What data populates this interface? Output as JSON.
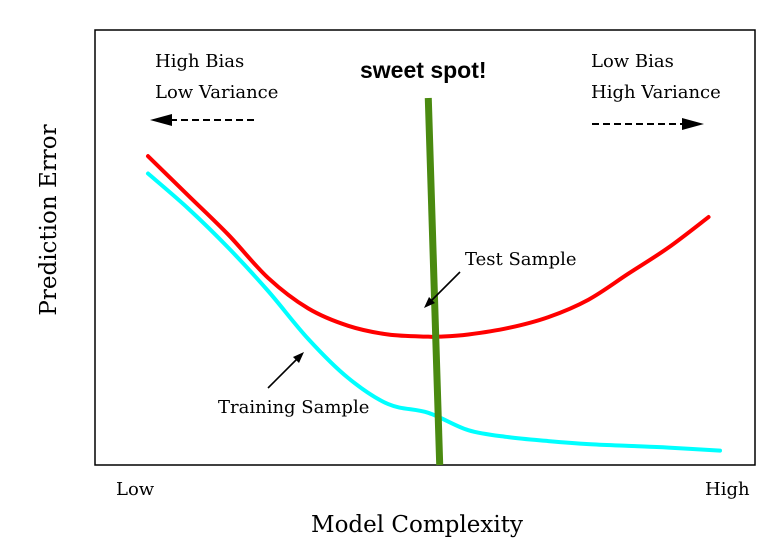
{
  "chart_data": {
    "type": "line",
    "xlabel": "Model Complexity",
    "ylabel": "Prediction Error",
    "x_tick_labels": [
      "Low",
      "High"
    ],
    "xlim": [
      0,
      1
    ],
    "ylim": [
      0,
      1
    ],
    "grid": false,
    "series": [
      {
        "name": "Test Sample",
        "color": "#ff0000",
        "x": [
          0.0,
          0.07,
          0.14,
          0.21,
          0.28,
          0.35,
          0.42,
          0.49,
          0.51,
          0.56,
          0.63,
          0.7,
          0.77,
          0.84,
          0.91,
          0.98
        ],
        "y": [
          0.71,
          0.62,
          0.53,
          0.43,
          0.36,
          0.32,
          0.3,
          0.295,
          0.295,
          0.3,
          0.315,
          0.34,
          0.38,
          0.44,
          0.5,
          0.57
        ]
      },
      {
        "name": "Training Sample",
        "color": "#00ffff",
        "x": [
          0.0,
          0.07,
          0.14,
          0.21,
          0.28,
          0.35,
          0.42,
          0.49,
          0.56,
          0.63,
          0.7,
          0.77,
          0.84,
          0.91,
          1.0
        ],
        "y": [
          0.67,
          0.59,
          0.5,
          0.4,
          0.29,
          0.2,
          0.14,
          0.12,
          0.08,
          0.064,
          0.055,
          0.048,
          0.044,
          0.04,
          0.033
        ]
      }
    ],
    "vertical_marker": {
      "label": "sweet spot!",
      "color": "#4a8a10",
      "x_top": 0.49,
      "x_bottom": 0.51
    },
    "annotations": {
      "left_top": "High Bias",
      "left_bottom": "Low Variance",
      "right_top": "Low Bias",
      "right_bottom": "High Variance",
      "test_label": "Test Sample",
      "train_label": "Training Sample"
    }
  }
}
